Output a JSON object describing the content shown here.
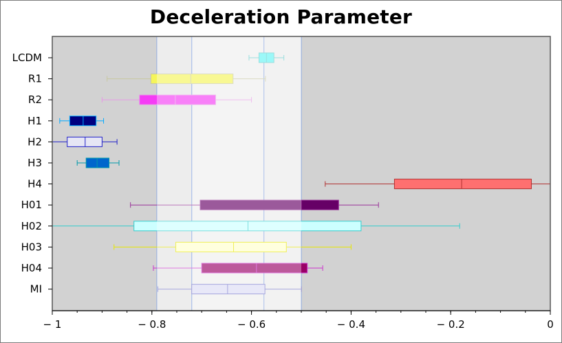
{
  "chart_data": {
    "type": "boxplot",
    "title": "Deceleration Parameter",
    "xlabel": "",
    "ylabel": "",
    "xlim": [
      -1,
      0
    ],
    "xticks": [
      -1,
      -0.8,
      -0.6,
      -0.4,
      -0.2,
      0
    ],
    "xtick_labels": [
      "− 1",
      "− 0.8",
      "− 0.6",
      "− 0.4",
      "− 0.2",
      "0"
    ],
    "plot_background": "#d2d2d2",
    "overlay_bands": [
      {
        "x": [
          -0.79,
          -0.5
        ],
        "color": "#f0f0f0",
        "opacity": 0.6
      },
      {
        "x": [
          -0.72,
          -0.5
        ],
        "color": "#f4f4f4",
        "opacity": 0.45
      },
      {
        "x": [
          -0.72,
          -0.575
        ],
        "color": "#f8f8f8",
        "opacity": 0.2
      }
    ],
    "series": [
      {
        "name": "LCDM",
        "whisker_low": -0.605,
        "q1": -0.585,
        "median": -0.57,
        "q3": -0.555,
        "whisker_high": -0.535,
        "color": "#66f5f5",
        "line_color": "#66cccc"
      },
      {
        "name": "R1",
        "whisker_low": -0.89,
        "q1": -0.802,
        "median": -0.722,
        "q3": -0.637,
        "whisker_high": -0.572,
        "color": "#f5f55a",
        "line_color": "#c8c8a0"
      },
      {
        "name": "R2",
        "whisker_low": -0.9,
        "q1": -0.825,
        "median": -0.753,
        "q3": -0.672,
        "whisker_high": -0.6,
        "color": "#f53cf5",
        "line_color": "#e699e6"
      },
      {
        "name": "H1",
        "whisker_low": -0.985,
        "q1": -0.965,
        "median": -0.938,
        "q3": -0.912,
        "whisker_high": -0.897,
        "color": "#000080",
        "line_color": "#00aaff"
      },
      {
        "name": "H2",
        "whisker_low": -1.0,
        "q1": -0.97,
        "median": -0.934,
        "q3": -0.9,
        "whisker_high": -0.87,
        "color": "#e6e6f5",
        "line_color": "#2020c8"
      },
      {
        "name": "H3",
        "whisker_low": -0.95,
        "q1": -0.932,
        "median": -0.91,
        "q3": -0.886,
        "whisker_high": -0.866,
        "color": "#0066cc",
        "line_color": "#0099aa"
      },
      {
        "name": "H4",
        "whisker_low": -0.452,
        "q1": -0.313,
        "median": -0.178,
        "q3": -0.038,
        "whisker_high": 0.0,
        "color": "#ff7070",
        "line_color": "#b03030"
      },
      {
        "name": "H01",
        "whisker_low": -0.843,
        "q1": -0.703,
        "median": -0.5,
        "q3": -0.425,
        "whisker_high": -0.345,
        "color": "#660066",
        "line_color": "#993399"
      },
      {
        "name": "H02",
        "whisker_low": -1.0,
        "q1": -0.836,
        "median": -0.607,
        "q3": -0.38,
        "whisker_high": -0.182,
        "color": "#ccffff",
        "line_color": "#33cccc"
      },
      {
        "name": "H03",
        "whisker_low": -0.876,
        "q1": -0.752,
        "median": -0.636,
        "q3": -0.53,
        "whisker_high": -0.4,
        "color": "#ffffcc",
        "line_color": "#e6e600"
      },
      {
        "name": "H04",
        "whisker_low": -0.797,
        "q1": -0.7,
        "median": -0.59,
        "q3": -0.488,
        "whisker_high": -0.457,
        "color": "#990066",
        "line_color": "#cc33cc"
      },
      {
        "name": "MI",
        "whisker_low": -0.788,
        "q1": -0.72,
        "median": -0.648,
        "q3": -0.573,
        "whisker_high": -0.5,
        "color": "#dcdcf5",
        "line_color": "#7777cc"
      }
    ]
  }
}
